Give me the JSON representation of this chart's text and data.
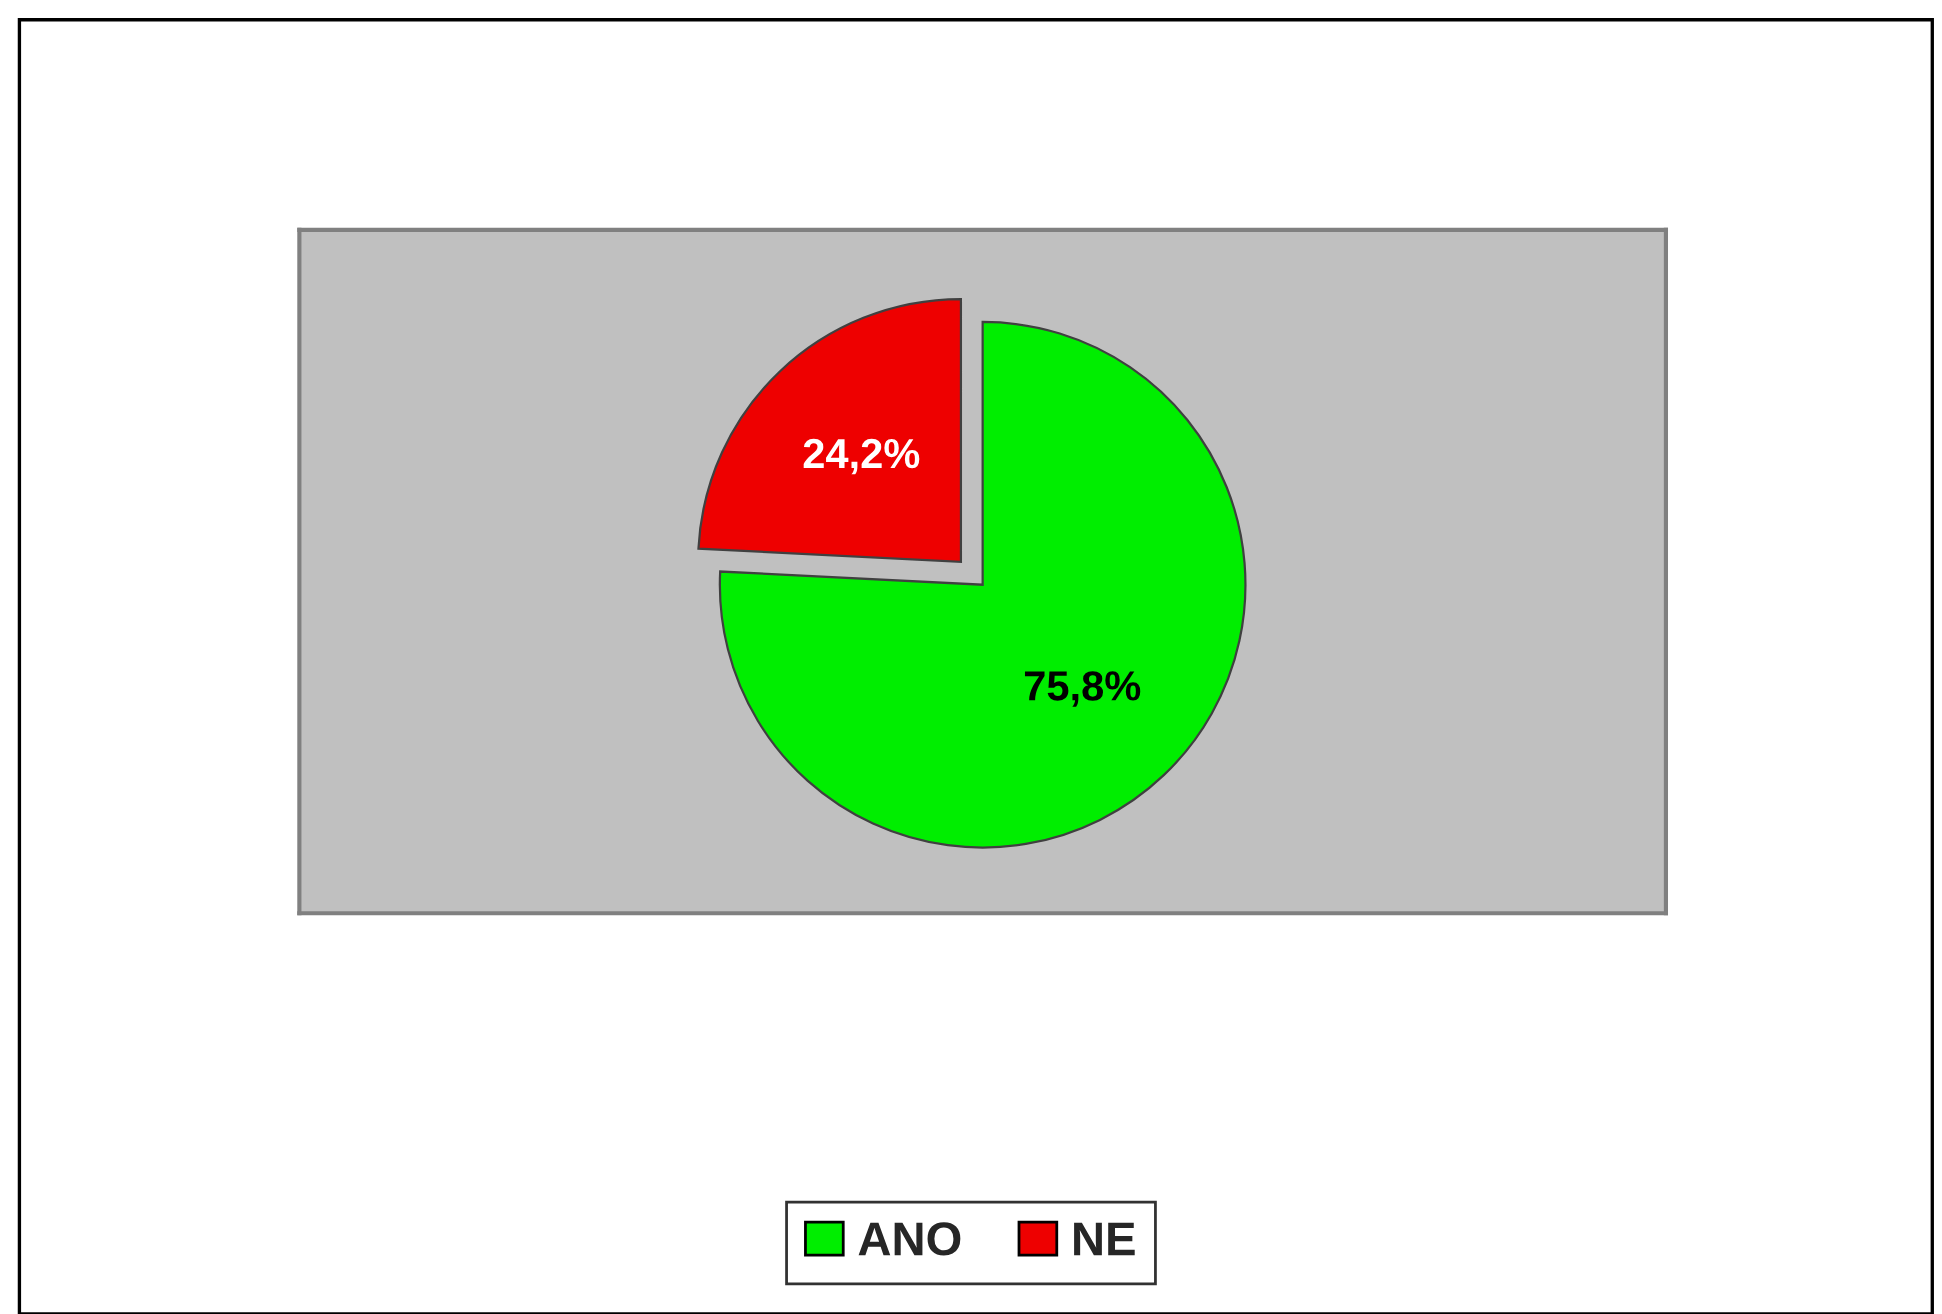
{
  "chart_data": {
    "type": "pie",
    "categories": [
      "ANO",
      "NE"
    ],
    "values": [
      75.8,
      24.2
    ],
    "colors": [
      "#00ee00",
      "#ee0000"
    ],
    "value_labels": [
      "75,8%",
      "24,2%"
    ],
    "legend": "bottom"
  }
}
